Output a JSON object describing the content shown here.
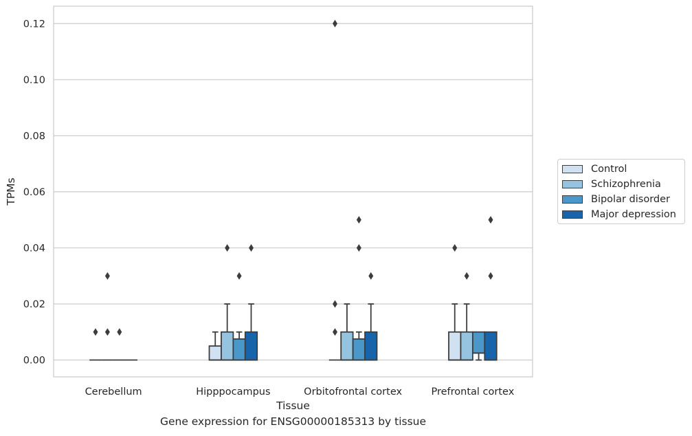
{
  "caption": "Gene expression for ENSG00000185313 by tissue",
  "chart_data": {
    "type": "box",
    "xlabel": "Tissue",
    "ylabel": "TPMs",
    "ylim": [
      -0.006,
      0.1262
    ],
    "yticks": [
      0.0,
      0.02,
      0.04,
      0.06,
      0.08,
      0.1,
      0.12
    ],
    "ytick_labels": [
      "0.00",
      "0.02",
      "0.04",
      "0.06",
      "0.08",
      "0.10",
      "0.12"
    ],
    "grid": true,
    "legend_position": "right",
    "categories": [
      "Cerebellum",
      "Hipppocampus",
      "Orbitofrontal cortex",
      "Prefrontal cortex"
    ],
    "series": [
      {
        "name": "Control",
        "color": "#d0e1f2",
        "boxes": [
          {
            "q1": 0.0,
            "median": 0.0,
            "q3": 0.0,
            "whislo": 0.0,
            "whishi": 0.0,
            "fliers": [
              0.01
            ]
          },
          {
            "q1": 0.0,
            "median": 0.0,
            "q3": 0.005,
            "whislo": 0.0,
            "whishi": 0.01,
            "fliers": []
          },
          {
            "q1": 0.0,
            "median": 0.0,
            "q3": 0.0,
            "whislo": 0.0,
            "whishi": 0.0,
            "fliers": [
              0.01,
              0.02,
              0.12
            ]
          },
          {
            "q1": 0.0,
            "median": 0.0,
            "q3": 0.01,
            "whislo": 0.0,
            "whishi": 0.02,
            "fliers": [
              0.04
            ]
          }
        ]
      },
      {
        "name": "Schizophrenia",
        "color": "#94c4df",
        "boxes": [
          {
            "q1": 0.0,
            "median": 0.0,
            "q3": 0.0,
            "whislo": 0.0,
            "whishi": 0.0,
            "fliers": [
              0.01,
              0.03
            ]
          },
          {
            "q1": 0.0,
            "median": 0.0,
            "q3": 0.01,
            "whislo": 0.0,
            "whishi": 0.02,
            "fliers": [
              0.04
            ]
          },
          {
            "q1": 0.0,
            "median": 0.0,
            "q3": 0.01,
            "whislo": 0.0,
            "whishi": 0.02,
            "fliers": []
          },
          {
            "q1": 0.0,
            "median": 0.0,
            "q3": 0.01,
            "whislo": 0.0,
            "whishi": 0.02,
            "fliers": [
              0.03
            ]
          }
        ]
      },
      {
        "name": "Bipolar disorder",
        "color": "#4a98c9",
        "boxes": [
          {
            "q1": 0.0,
            "median": 0.0,
            "q3": 0.0,
            "whislo": 0.0,
            "whishi": 0.0,
            "fliers": [
              0.01
            ]
          },
          {
            "q1": 0.0,
            "median": 0.0,
            "q3": 0.0075,
            "whislo": 0.0,
            "whishi": 0.01,
            "fliers": [
              0.03
            ]
          },
          {
            "q1": 0.0,
            "median": 0.0,
            "q3": 0.0075,
            "whislo": 0.0,
            "whishi": 0.01,
            "fliers": [
              0.04,
              0.05
            ]
          },
          {
            "q1": 0.0025,
            "median": 0.0025,
            "q3": 0.01,
            "whislo": 0.0,
            "whishi": 0.01,
            "fliers": []
          }
        ]
      },
      {
        "name": "Major depression",
        "color": "#1764ab",
        "boxes": [
          {
            "q1": 0.0,
            "median": 0.0,
            "q3": 0.0,
            "whislo": 0.0,
            "whishi": 0.0,
            "fliers": []
          },
          {
            "q1": 0.0,
            "median": 0.0,
            "q3": 0.01,
            "whislo": 0.0,
            "whishi": 0.02,
            "fliers": [
              0.04
            ]
          },
          {
            "q1": 0.0,
            "median": 0.0,
            "q3": 0.01,
            "whislo": 0.0,
            "whishi": 0.02,
            "fliers": [
              0.03
            ]
          },
          {
            "q1": 0.0,
            "median": 0.0,
            "q3": 0.01,
            "whislo": 0.0,
            "whishi": 0.01,
            "fliers": [
              0.03,
              0.05
            ]
          }
        ]
      }
    ]
  }
}
